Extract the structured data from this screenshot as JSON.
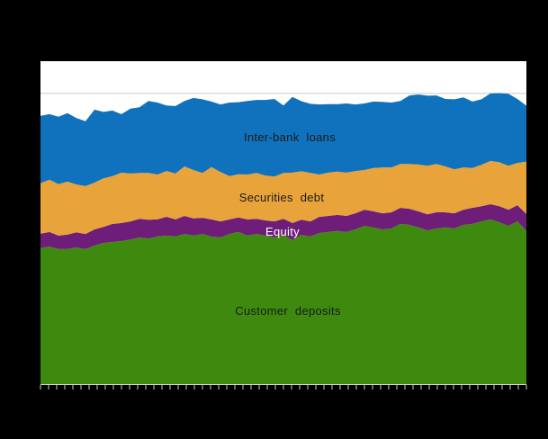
{
  "figure": {
    "background": "#000000",
    "plot_background": "#ffffff"
  },
  "chart_data": {
    "type": "area",
    "stacking": "stacked",
    "title": "",
    "xlabel": "",
    "ylabel": "",
    "legend_position": "inline-labels-inside-areas",
    "grid": "single horizontal gridline near top of plot",
    "x_axis": {
      "labels_visible": false,
      "tick_count": 61
    },
    "y_axis": {
      "labels_visible": false,
      "units": "percent of plot height (no axis labels visible in image)",
      "ylim": [
        0,
        100
      ],
      "gridline_value": 90.0
    },
    "sample_count": 55,
    "series": [
      {
        "name": "Customer deposits",
        "color": "#3E8A0E",
        "label_color": "#1a1a1a",
        "values": [
          42.1,
          42.6,
          41.8,
          41.8,
          42.3,
          41.8,
          42.9,
          43.7,
          44.0,
          44.3,
          44.8,
          45.4,
          45.1,
          45.7,
          46.0,
          45.7,
          46.5,
          46.0,
          46.5,
          45.7,
          45.4,
          46.5,
          47.1,
          46.0,
          46.5,
          46.0,
          45.4,
          46.2,
          44.6,
          46.2,
          45.7,
          46.8,
          47.1,
          47.4,
          47.1,
          47.9,
          49.0,
          48.5,
          47.9,
          48.2,
          49.6,
          49.3,
          48.5,
          47.6,
          48.2,
          48.5,
          48.2,
          49.3,
          49.6,
          50.4,
          51.0,
          50.1,
          49.0,
          50.4,
          47.4
        ]
      },
      {
        "name": "Equity",
        "color": "#6E1E78",
        "label_color": "#ffffff",
        "values": [
          4.5,
          4.5,
          4.2,
          4.5,
          4.7,
          4.7,
          5.0,
          5.0,
          5.6,
          5.6,
          5.6,
          5.8,
          5.8,
          5.3,
          5.8,
          5.3,
          5.6,
          5.3,
          5.0,
          5.3,
          5.0,
          4.5,
          4.5,
          5.0,
          4.7,
          4.7,
          5.0,
          5.0,
          5.3,
          4.7,
          4.7,
          5.0,
          5.0,
          5.0,
          5.0,
          5.0,
          5.0,
          5.0,
          5.0,
          5.0,
          5.0,
          5.0,
          5.0,
          5.0,
          5.0,
          4.7,
          4.7,
          4.7,
          5.0,
          4.7,
          4.7,
          5.0,
          5.0,
          5.0,
          5.3
        ]
      },
      {
        "name": "Securities debt",
        "color": "#E8A33B",
        "label_color": "#1a1a1a",
        "values": [
          15.6,
          16.2,
          15.9,
          16.4,
          14.8,
          14.8,
          14.5,
          15.0,
          14.8,
          15.6,
          14.8,
          14.2,
          14.5,
          13.9,
          14.2,
          14.2,
          15.3,
          15.0,
          13.9,
          16.2,
          15.3,
          13.4,
          13.4,
          13.9,
          14.2,
          13.9,
          13.9,
          14.2,
          15.6,
          15.0,
          15.0,
          13.1,
          13.4,
          13.4,
          13.4,
          13.1,
          12.3,
          13.4,
          14.2,
          13.9,
          13.6,
          13.9,
          14.5,
          15.0,
          15.0,
          14.2,
          13.6,
          13.1,
          12.3,
          12.8,
          13.4,
          13.6,
          13.6,
          13.1,
          16.2
        ]
      },
      {
        "name": "Inter-bank loans",
        "color": "#1072BC",
        "label_color": "#1a1a1a",
        "values": [
          20.9,
          20.3,
          20.9,
          21.2,
          20.6,
          20.1,
          22.6,
          20.6,
          20.3,
          18.1,
          20.1,
          20.3,
          22.3,
          22.3,
          20.3,
          20.9,
          20.3,
          22.3,
          22.8,
          20.3,
          20.9,
          22.8,
          22.3,
          22.8,
          22.6,
          23.4,
          24.0,
          20.9,
          23.4,
          21.7,
          21.4,
          21.7,
          21.2,
          20.9,
          21.4,
          20.6,
          20.6,
          20.6,
          20.3,
          20.1,
          19.5,
          21.2,
          21.7,
          21.7,
          21.2,
          20.9,
          21.7,
          21.7,
          20.6,
          20.3,
          20.9,
          21.4,
          22.3,
          19.8,
          17.3
        ]
      }
    ]
  },
  "axis_style": {
    "gridline_color": "#c9c9c9",
    "axis_line_color": "#d9d9d9",
    "tick_color": "#cccccc"
  }
}
